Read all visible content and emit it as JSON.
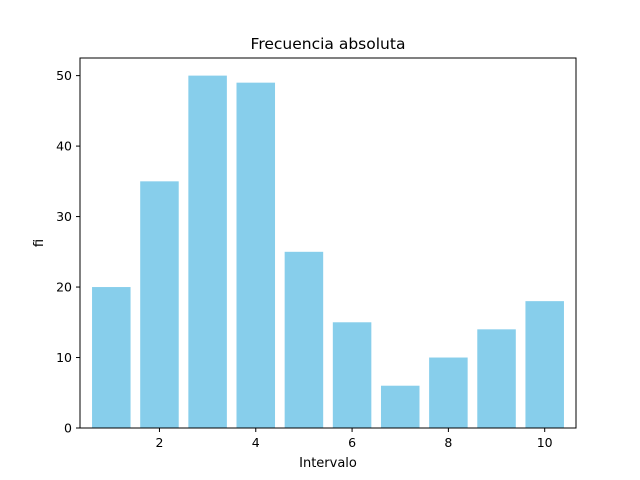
{
  "chart_data": {
    "type": "bar",
    "title": "Frecuencia absoluta",
    "xlabel": "Intervalo",
    "ylabel": "fi",
    "x": [
      1,
      2,
      3,
      4,
      5,
      6,
      7,
      8,
      9,
      10
    ],
    "values": [
      20,
      35,
      50,
      49,
      25,
      15,
      6,
      10,
      14,
      18
    ],
    "bar_color": "#87CEEB",
    "xlim": [
      0.35,
      10.65
    ],
    "ylim": [
      0,
      52.5
    ],
    "xticks": [
      2,
      4,
      6,
      8,
      10
    ],
    "yticks": [
      0,
      10,
      20,
      30,
      40,
      50
    ],
    "grid": false
  }
}
